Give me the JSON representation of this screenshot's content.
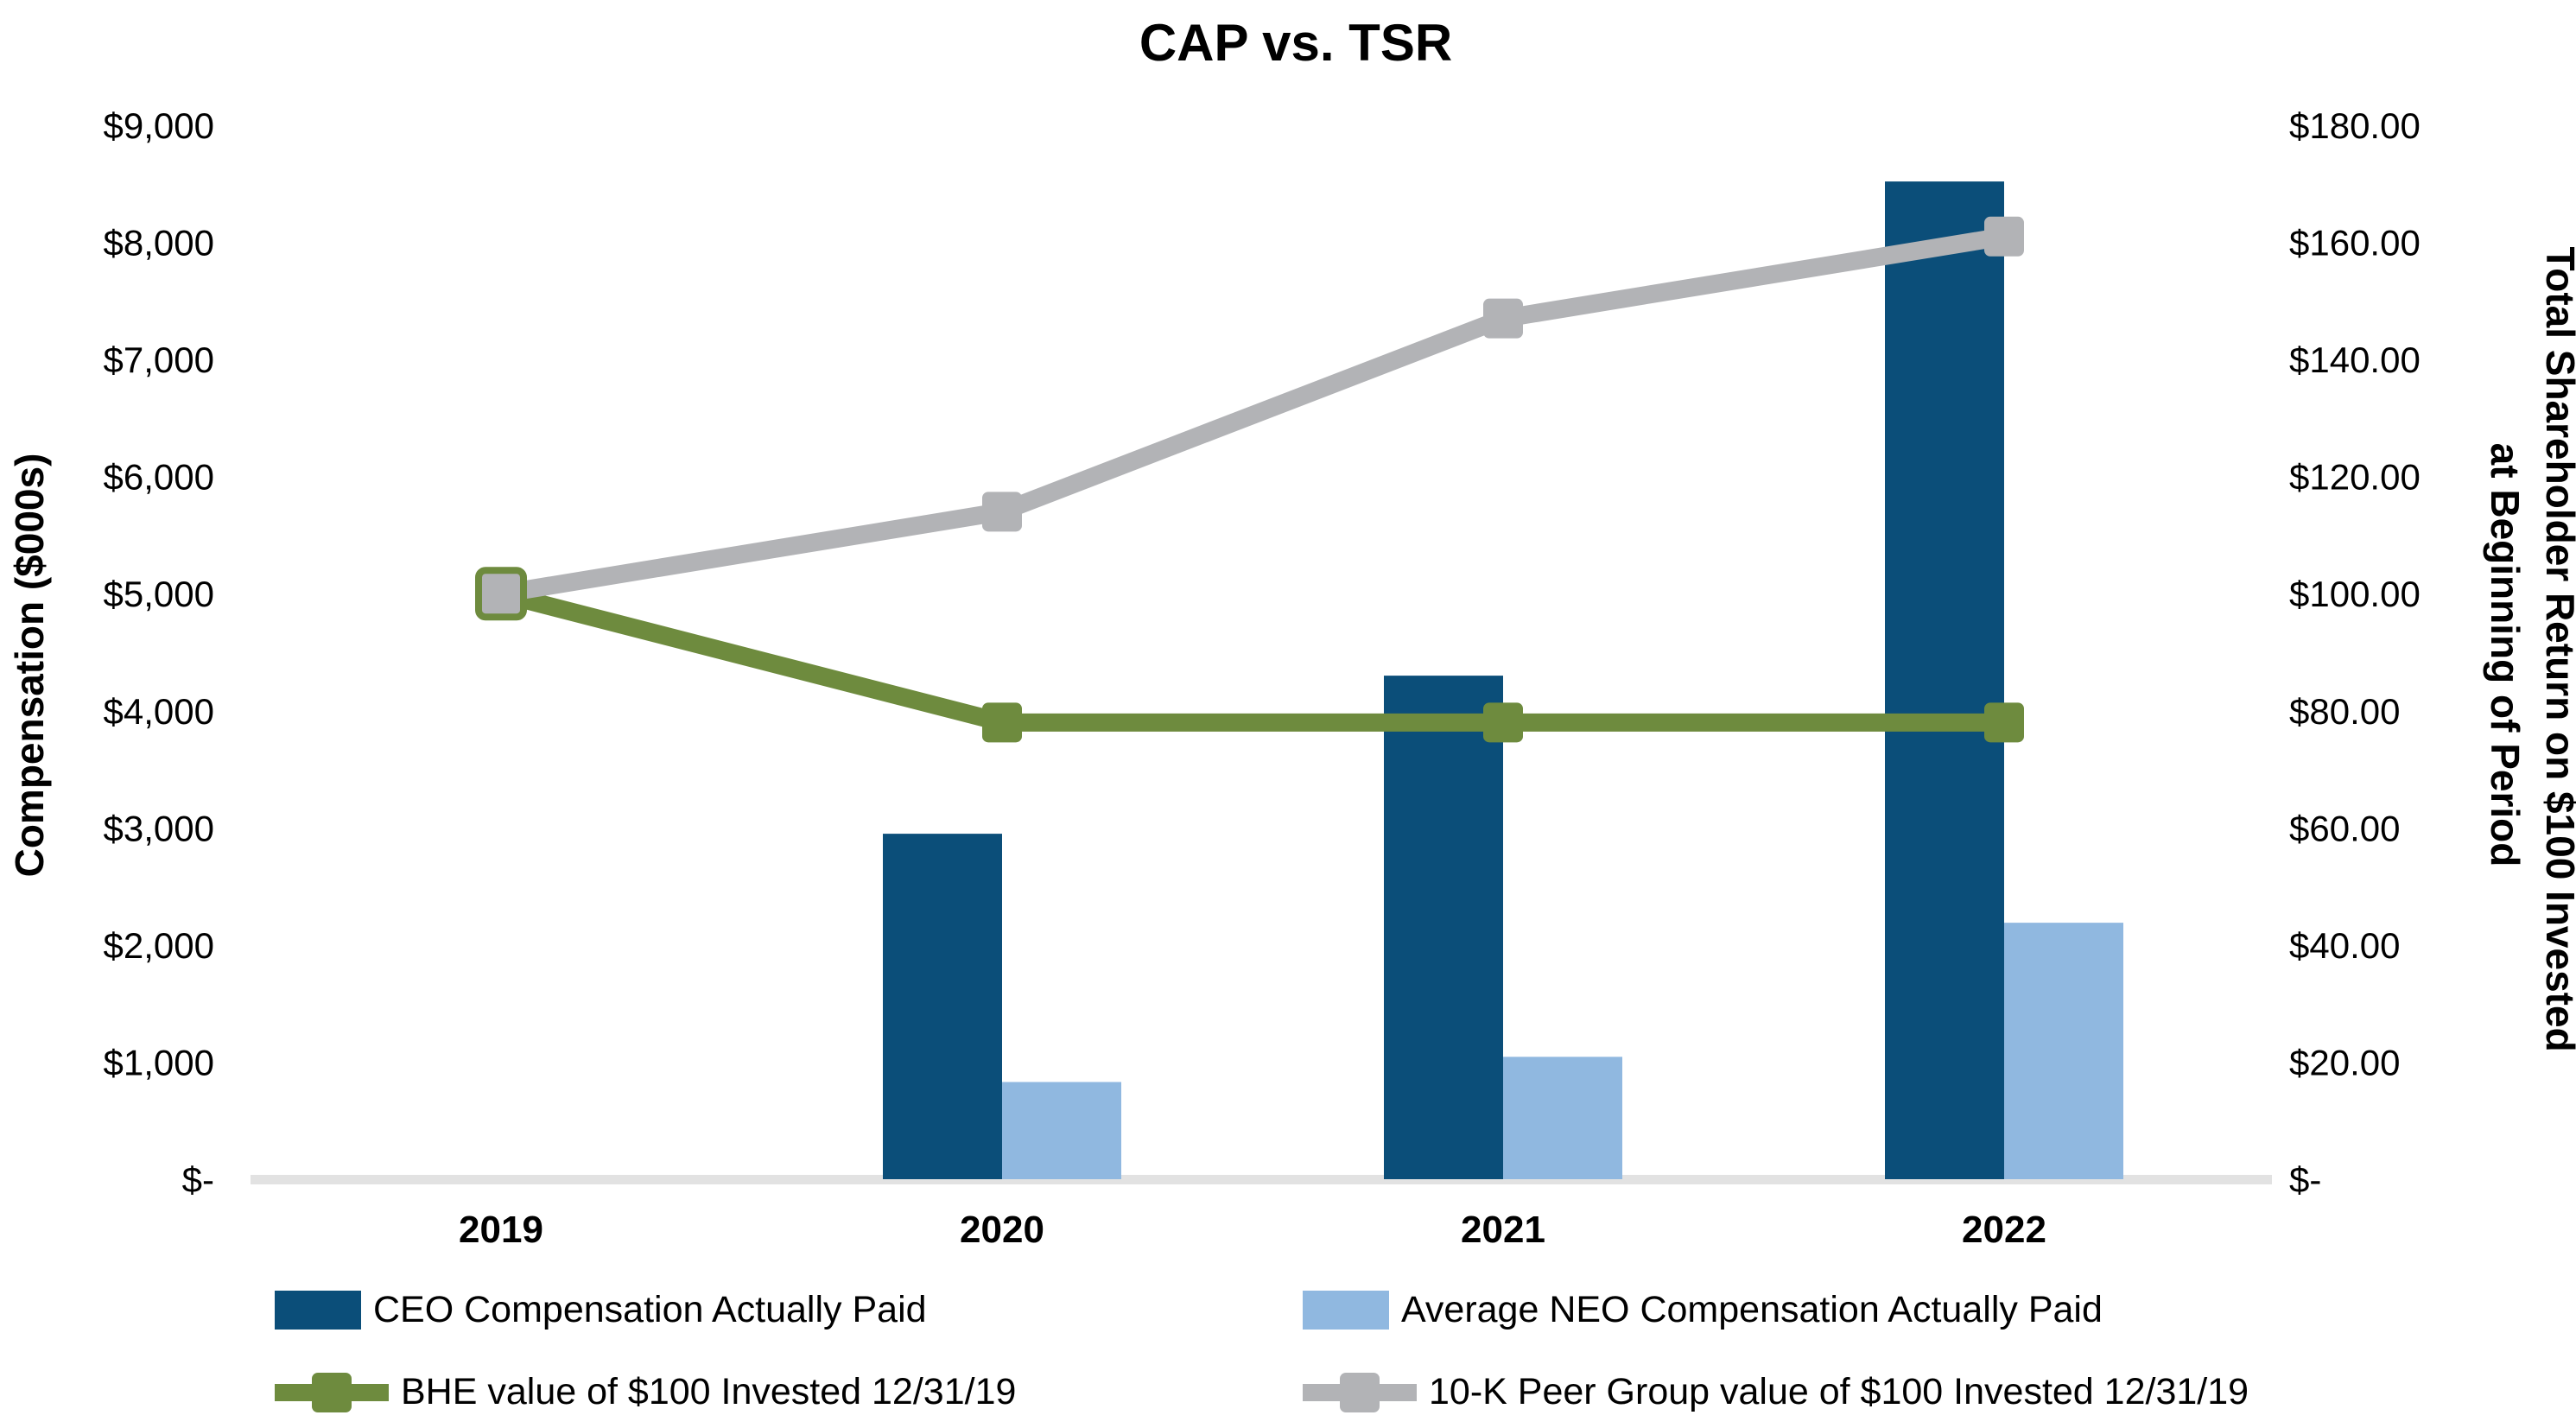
{
  "title": "CAP vs. TSR",
  "axes": {
    "left": {
      "label": "Compensation ($000s)",
      "ticks": [
        "$9,000",
        "$8,000",
        "$7,000",
        "$6,000",
        "$5,000",
        "$4,000",
        "$3,000",
        "$2,000",
        "$1,000",
        "$-"
      ],
      "range": [
        0,
        9000
      ]
    },
    "right": {
      "label_line1": "Total Shareholder Return on $100 Invested",
      "label_line2": "at Beginning of Period",
      "ticks": [
        "$180.00",
        "$160.00",
        "$140.00",
        "$120.00",
        "$100.00",
        "$80.00",
        "$60.00",
        "$40.00",
        "$20.00",
        "$-"
      ],
      "range": [
        0,
        180
      ]
    }
  },
  "chart_data": {
    "type": "combo-bar-line",
    "title": "CAP vs. TSR",
    "categories": [
      "2019",
      "2020",
      "2021",
      "2022"
    ],
    "series": [
      {
        "name": "CEO Compensation Actually Paid",
        "type": "bar",
        "axis": "left",
        "color": "#0B4E79",
        "values": [
          null,
          2950,
          4300,
          8520
        ]
      },
      {
        "name": "Average NEO Compensation Actually Paid",
        "type": "bar",
        "axis": "left",
        "color": "#90B8E0",
        "values": [
          null,
          830,
          1045,
          2190
        ]
      },
      {
        "name": "BHE value of $100 Invested 12/31/19",
        "type": "line",
        "axis": "right",
        "color": "#6E8B3E",
        "values": [
          100,
          78,
          78,
          78
        ]
      },
      {
        "name": "10-K Peer Group value of $100 Invested 12/31/19",
        "type": "line",
        "axis": "right",
        "color": "#B2B3B6",
        "values": [
          100,
          114,
          147,
          161
        ]
      }
    ],
    "left_axis_range": [
      0,
      9000
    ],
    "right_axis_range": [
      0,
      180
    ],
    "grid": false,
    "legend_position": "bottom",
    "baseline_color": "#E2E2E2",
    "origin_marker_2019": {
      "fill": "#B2B3B6",
      "border": "#6E8B3E",
      "note": "both lines start at $100.00 in 2019 with overlapped marker"
    }
  },
  "legend": {
    "items": [
      {
        "label": "CEO Compensation Actually Paid",
        "swatch": "bar",
        "color": "#0B4E79"
      },
      {
        "label": "Average NEO Compensation Actually Paid",
        "swatch": "bar",
        "color": "#90B8E0"
      },
      {
        "label": "BHE value of $100 Invested 12/31/19",
        "swatch": "line",
        "color": "#6E8B3E"
      },
      {
        "label": "10-K Peer Group value of $100 Invested 12/31/19",
        "swatch": "line",
        "color": "#B2B3B6"
      }
    ]
  }
}
